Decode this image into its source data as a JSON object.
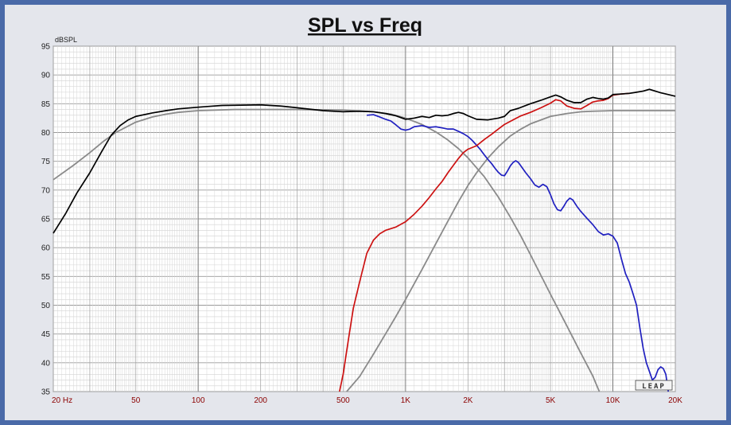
{
  "chart_data": {
    "type": "line",
    "title": "SPL vs Freq",
    "ylabel": "dBSPL",
    "xlabel": "",
    "x_scale": "log",
    "xlim": [
      20,
      20000
    ],
    "ylim": [
      35,
      95
    ],
    "grid": true,
    "y_ticks": [
      95,
      90,
      85,
      80,
      75,
      70,
      65,
      60,
      55,
      50,
      45,
      40,
      35
    ],
    "x_ticks": [
      {
        "value": 20,
        "label": "20  Hz"
      },
      {
        "value": 50,
        "label": "50"
      },
      {
        "value": 100,
        "label": "100"
      },
      {
        "value": 200,
        "label": "200"
      },
      {
        "value": 500,
        "label": "500"
      },
      {
        "value": 1000,
        "label": "1K"
      },
      {
        "value": 2000,
        "label": "2K"
      },
      {
        "value": 5000,
        "label": "5K"
      },
      {
        "value": 10000,
        "label": "10K"
      },
      {
        "value": 20000,
        "label": "20K"
      }
    ],
    "watermark": "LEAP",
    "series": [
      {
        "color": "#000000",
        "points": [
          [
            20,
            62.5
          ],
          [
            23,
            66
          ],
          [
            26,
            69.5
          ],
          [
            30,
            73
          ],
          [
            34,
            76.5
          ],
          [
            38,
            79.5
          ],
          [
            42,
            81.2
          ],
          [
            46,
            82.2
          ],
          [
            50,
            82.8
          ],
          [
            60,
            83.4
          ],
          [
            70,
            83.8
          ],
          [
            80,
            84.1
          ],
          [
            100,
            84.4
          ],
          [
            130,
            84.7
          ],
          [
            200,
            84.8
          ],
          [
            250,
            84.6
          ],
          [
            300,
            84.3
          ],
          [
            400,
            83.8
          ],
          [
            500,
            83.6
          ],
          [
            600,
            83.7
          ],
          [
            700,
            83.6
          ],
          [
            800,
            83.3
          ],
          [
            900,
            82.9
          ],
          [
            1000,
            82.3
          ],
          [
            1100,
            82.5
          ],
          [
            1200,
            82.8
          ],
          [
            1300,
            82.6
          ],
          [
            1400,
            83
          ],
          [
            1500,
            82.9
          ],
          [
            1600,
            83
          ],
          [
            1700,
            83.3
          ],
          [
            1800,
            83.5
          ],
          [
            1900,
            83.3
          ],
          [
            2000,
            82.9
          ],
          [
            2200,
            82.3
          ],
          [
            2500,
            82.2
          ],
          [
            2800,
            82.5
          ],
          [
            3000,
            82.8
          ],
          [
            3200,
            83.8
          ],
          [
            3500,
            84.2
          ],
          [
            4000,
            85
          ],
          [
            4500,
            85.6
          ],
          [
            5000,
            86.2
          ],
          [
            5300,
            86.5
          ],
          [
            5600,
            86.2
          ],
          [
            6000,
            85.6
          ],
          [
            6500,
            85.2
          ],
          [
            7000,
            85.2
          ],
          [
            7500,
            85.8
          ],
          [
            8000,
            86.1
          ],
          [
            8500,
            85.9
          ],
          [
            9000,
            85.8
          ],
          [
            9500,
            86
          ],
          [
            10000,
            86.6
          ],
          [
            11000,
            86.7
          ],
          [
            12000,
            86.8
          ],
          [
            13000,
            87
          ],
          [
            14000,
            87.2
          ],
          [
            15000,
            87.5
          ],
          [
            16000,
            87.2
          ],
          [
            17000,
            86.9
          ],
          [
            18000,
            86.7
          ],
          [
            20000,
            86.3
          ]
        ]
      },
      {
        "color": "#2020c0",
        "points": [
          [
            650,
            83
          ],
          [
            700,
            83.1
          ],
          [
            750,
            82.7
          ],
          [
            800,
            82.3
          ],
          [
            850,
            82
          ],
          [
            900,
            81.3
          ],
          [
            950,
            80.6
          ],
          [
            1000,
            80.4
          ],
          [
            1050,
            80.6
          ],
          [
            1100,
            81
          ],
          [
            1200,
            81.2
          ],
          [
            1300,
            80.9
          ],
          [
            1400,
            81
          ],
          [
            1500,
            80.8
          ],
          [
            1600,
            80.6
          ],
          [
            1700,
            80.6
          ],
          [
            1800,
            80.2
          ],
          [
            1900,
            79.8
          ],
          [
            2000,
            79.3
          ],
          [
            2100,
            78.6
          ],
          [
            2200,
            77.8
          ],
          [
            2300,
            77
          ],
          [
            2400,
            76.1
          ],
          [
            2500,
            75.3
          ],
          [
            2600,
            74.6
          ],
          [
            2700,
            73.8
          ],
          [
            2800,
            73.1
          ],
          [
            2900,
            72.6
          ],
          [
            3000,
            72.5
          ],
          [
            3100,
            73.3
          ],
          [
            3200,
            74.2
          ],
          [
            3300,
            74.8
          ],
          [
            3400,
            75.1
          ],
          [
            3500,
            74.8
          ],
          [
            3600,
            74.2
          ],
          [
            3800,
            73
          ],
          [
            4000,
            72
          ],
          [
            4200,
            70.9
          ],
          [
            4400,
            70.5
          ],
          [
            4600,
            71
          ],
          [
            4800,
            70.6
          ],
          [
            5000,
            69.2
          ],
          [
            5200,
            67.6
          ],
          [
            5400,
            66.6
          ],
          [
            5600,
            66.4
          ],
          [
            5800,
            67.2
          ],
          [
            6000,
            68.1
          ],
          [
            6200,
            68.6
          ],
          [
            6400,
            68.3
          ],
          [
            6700,
            67.2
          ],
          [
            7000,
            66.3
          ],
          [
            7500,
            65.1
          ],
          [
            8000,
            64
          ],
          [
            8500,
            62.8
          ],
          [
            9000,
            62.2
          ],
          [
            9500,
            62.4
          ],
          [
            10000,
            62
          ],
          [
            10500,
            60.8
          ],
          [
            11000,
            58
          ],
          [
            11500,
            55.5
          ],
          [
            12000,
            54
          ],
          [
            12500,
            52
          ],
          [
            13000,
            50
          ],
          [
            13500,
            46
          ],
          [
            14000,
            42.5
          ],
          [
            14500,
            40
          ],
          [
            15000,
            38.5
          ],
          [
            15500,
            37
          ],
          [
            16000,
            37.5
          ],
          [
            16500,
            38.8
          ],
          [
            17000,
            39.3
          ],
          [
            17500,
            39
          ],
          [
            18000,
            38
          ],
          [
            18500,
            35
          ]
        ]
      },
      {
        "color": "#cc1111",
        "points": [
          [
            480,
            35
          ],
          [
            490,
            36.5
          ],
          [
            500,
            38
          ],
          [
            530,
            44
          ],
          [
            560,
            49.5
          ],
          [
            600,
            54
          ],
          [
            650,
            59
          ],
          [
            700,
            61.3
          ],
          [
            750,
            62.4
          ],
          [
            800,
            63
          ],
          [
            900,
            63.6
          ],
          [
            1000,
            64.5
          ],
          [
            1100,
            65.8
          ],
          [
            1200,
            67.2
          ],
          [
            1300,
            68.7
          ],
          [
            1400,
            70.2
          ],
          [
            1500,
            71.5
          ],
          [
            1600,
            73
          ],
          [
            1700,
            74.3
          ],
          [
            1800,
            75.5
          ],
          [
            1900,
            76.5
          ],
          [
            2000,
            77.1
          ],
          [
            2200,
            77.7
          ],
          [
            2400,
            78.8
          ],
          [
            2600,
            79.7
          ],
          [
            2800,
            80.6
          ],
          [
            3000,
            81.4
          ],
          [
            3300,
            82.2
          ],
          [
            3600,
            82.9
          ],
          [
            4000,
            83.5
          ],
          [
            4500,
            84.3
          ],
          [
            5000,
            85.1
          ],
          [
            5300,
            85.7
          ],
          [
            5600,
            85.5
          ],
          [
            6000,
            84.6
          ],
          [
            6500,
            84.2
          ],
          [
            7000,
            84.1
          ],
          [
            7500,
            84.7
          ],
          [
            8000,
            85.3
          ],
          [
            8500,
            85.5
          ],
          [
            9000,
            85.6
          ],
          [
            9500,
            85.9
          ],
          [
            10000,
            86.5
          ],
          [
            11000,
            86.7
          ],
          [
            12000,
            86.8
          ]
        ]
      },
      {
        "color": "#8a8a8a",
        "points": [
          [
            20,
            71.8
          ],
          [
            25,
            74.3
          ],
          [
            30,
            76.5
          ],
          [
            35,
            78.5
          ],
          [
            40,
            80
          ],
          [
            50,
            81.8
          ],
          [
            60,
            82.7
          ],
          [
            70,
            83.2
          ],
          [
            80,
            83.5
          ],
          [
            100,
            83.8
          ],
          [
            150,
            84
          ],
          [
            300,
            84
          ],
          [
            500,
            83.9
          ],
          [
            700,
            83.6
          ],
          [
            850,
            83.2
          ],
          [
            1000,
            82.5
          ],
          [
            1200,
            81.4
          ],
          [
            1400,
            80.1
          ],
          [
            1600,
            78.7
          ],
          [
            1800,
            77.2
          ],
          [
            2000,
            75.6
          ],
          [
            2400,
            72.3
          ],
          [
            2800,
            68.8
          ],
          [
            3200,
            65.3
          ],
          [
            3600,
            62
          ],
          [
            4000,
            58.8
          ],
          [
            5000,
            51.9
          ],
          [
            6000,
            46.4
          ],
          [
            7000,
            41.7
          ],
          [
            8000,
            37.7
          ],
          [
            8600,
            35
          ]
        ]
      },
      {
        "color": "#8a8a8a",
        "points": [
          [
            520,
            35
          ],
          [
            600,
            37.6
          ],
          [
            700,
            41.5
          ],
          [
            800,
            45
          ],
          [
            900,
            48.1
          ],
          [
            1000,
            51
          ],
          [
            1200,
            56.2
          ],
          [
            1400,
            60.7
          ],
          [
            1600,
            64.6
          ],
          [
            1800,
            68
          ],
          [
            2000,
            70.8
          ],
          [
            2200,
            73
          ],
          [
            2500,
            75.6
          ],
          [
            2800,
            77.5
          ],
          [
            3200,
            79.4
          ],
          [
            3600,
            80.6
          ],
          [
            4000,
            81.5
          ],
          [
            5000,
            82.8
          ],
          [
            6000,
            83.3
          ],
          [
            7000,
            83.6
          ],
          [
            8000,
            83.7
          ],
          [
            10000,
            83.8
          ],
          [
            20000,
            83.8
          ]
        ]
      }
    ]
  }
}
